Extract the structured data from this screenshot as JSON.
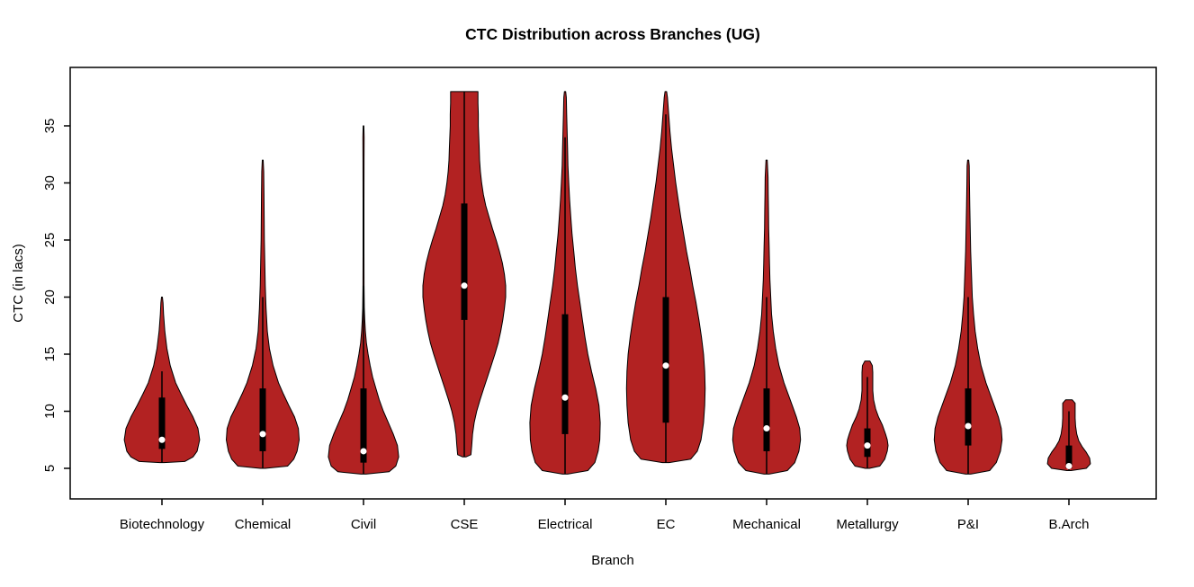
{
  "chart_data": {
    "type": "violin",
    "title": "CTC Distribution across Branches (UG)",
    "xlabel": "Branch",
    "ylabel": "CTC (in lacs)",
    "ylim": [
      2.5,
      39.5
    ],
    "yticks": [
      5,
      10,
      15,
      20,
      25,
      30,
      35
    ],
    "grid": false,
    "legend": "none",
    "violin_fill": "#B22222",
    "outline_color": "#000000",
    "median_dot_color": "#ffffff",
    "categories": [
      "Biotechnology",
      "Chemical",
      "Civil",
      "CSE",
      "Electrical",
      "EC",
      "Mechanical",
      "Metallurgy",
      "P&I",
      "B.Arch"
    ],
    "series": [
      {
        "name": "Biotechnology",
        "min": 5.5,
        "max": 20,
        "median": 7.5,
        "q1": 6.7,
        "q3": 11.2,
        "whisker_low": 5.5,
        "whisker_high": 13.5,
        "profile": [
          [
            5.5,
            0.05
          ],
          [
            5.6,
            0.55
          ],
          [
            6,
            0.75
          ],
          [
            6.5,
            0.85
          ],
          [
            7.5,
            0.91
          ],
          [
            8.5,
            0.87
          ],
          [
            9.5,
            0.75
          ],
          [
            10.5,
            0.6
          ],
          [
            11.5,
            0.46
          ],
          [
            12.5,
            0.33
          ],
          [
            14,
            0.2
          ],
          [
            15.5,
            0.12
          ],
          [
            17,
            0.07
          ],
          [
            18.5,
            0.04
          ],
          [
            19.5,
            0.025
          ],
          [
            20,
            0.01
          ]
        ]
      },
      {
        "name": "Chemical",
        "min": 5,
        "max": 32,
        "median": 8,
        "q1": 6.5,
        "q3": 12,
        "whisker_low": 5,
        "whisker_high": 20,
        "profile": [
          [
            5,
            0.06
          ],
          [
            5.2,
            0.6
          ],
          [
            5.8,
            0.75
          ],
          [
            6.5,
            0.83
          ],
          [
            7.5,
            0.88
          ],
          [
            8.5,
            0.86
          ],
          [
            9.5,
            0.77
          ],
          [
            10.5,
            0.63
          ],
          [
            11.5,
            0.5
          ],
          [
            12.5,
            0.38
          ],
          [
            14,
            0.25
          ],
          [
            15.5,
            0.16
          ],
          [
            17,
            0.11
          ],
          [
            19,
            0.08
          ],
          [
            21,
            0.06
          ],
          [
            23,
            0.05
          ],
          [
            25,
            0.04
          ],
          [
            27,
            0.035
          ],
          [
            29,
            0.03
          ],
          [
            31,
            0.025
          ],
          [
            32,
            0.01
          ]
        ]
      },
      {
        "name": "Civil",
        "min": 4.5,
        "max": 35,
        "median": 6.5,
        "q1": 5.5,
        "q3": 12,
        "whisker_low": 4.5,
        "whisker_high": 21,
        "profile": [
          [
            4.5,
            0.06
          ],
          [
            4.7,
            0.62
          ],
          [
            5.2,
            0.78
          ],
          [
            6,
            0.85
          ],
          [
            7,
            0.82
          ],
          [
            8,
            0.72
          ],
          [
            9,
            0.6
          ],
          [
            10,
            0.48
          ],
          [
            11,
            0.38
          ],
          [
            12,
            0.3
          ],
          [
            13,
            0.22
          ],
          [
            14,
            0.16
          ],
          [
            15,
            0.11
          ],
          [
            16,
            0.07
          ],
          [
            17,
            0.045
          ],
          [
            18,
            0.03
          ],
          [
            19,
            0.02
          ],
          [
            21,
            0.012
          ],
          [
            24,
            0.01
          ],
          [
            28,
            0.01
          ],
          [
            32,
            0.012
          ],
          [
            34,
            0.015
          ],
          [
            35,
            0.008
          ]
        ]
      },
      {
        "name": "CSE",
        "min": 6,
        "max": 38,
        "median": 21,
        "q1": 18,
        "q3": 28.2,
        "whisker_low": 6,
        "whisker_high": 38,
        "profile": [
          [
            6,
            0.04
          ],
          [
            6.2,
            0.16
          ],
          [
            7,
            0.18
          ],
          [
            8,
            0.2
          ],
          [
            9,
            0.24
          ],
          [
            10,
            0.3
          ],
          [
            11,
            0.38
          ],
          [
            12,
            0.47
          ],
          [
            13,
            0.56
          ],
          [
            14,
            0.65
          ],
          [
            15,
            0.74
          ],
          [
            16,
            0.82
          ],
          [
            17,
            0.88
          ],
          [
            18,
            0.93
          ],
          [
            19,
            0.97
          ],
          [
            20,
            1.0
          ],
          [
            21,
            1.0
          ],
          [
            22,
            0.97
          ],
          [
            23,
            0.92
          ],
          [
            24,
            0.85
          ],
          [
            25,
            0.77
          ],
          [
            26,
            0.68
          ],
          [
            27,
            0.6
          ],
          [
            28,
            0.52
          ],
          [
            29,
            0.46
          ],
          [
            30,
            0.42
          ],
          [
            31,
            0.39
          ],
          [
            32,
            0.37
          ],
          [
            33,
            0.36
          ],
          [
            34,
            0.35
          ],
          [
            35,
            0.34
          ],
          [
            36,
            0.34
          ],
          [
            37,
            0.33
          ],
          [
            38,
            0.33
          ]
        ]
      },
      {
        "name": "Electrical",
        "min": 4.5,
        "max": 38,
        "median": 11.2,
        "q1": 8,
        "q3": 18.5,
        "whisker_low": 4.5,
        "whisker_high": 34,
        "profile": [
          [
            4.5,
            0.06
          ],
          [
            4.8,
            0.55
          ],
          [
            5.5,
            0.72
          ],
          [
            6.5,
            0.8
          ],
          [
            7.5,
            0.84
          ],
          [
            9,
            0.85
          ],
          [
            10.5,
            0.82
          ],
          [
            12,
            0.74
          ],
          [
            13.5,
            0.64
          ],
          [
            15,
            0.55
          ],
          [
            16.5,
            0.48
          ],
          [
            18,
            0.42
          ],
          [
            19.5,
            0.36
          ],
          [
            21,
            0.3
          ],
          [
            22.5,
            0.25
          ],
          [
            24,
            0.21
          ],
          [
            25.5,
            0.17
          ],
          [
            27,
            0.14
          ],
          [
            28.5,
            0.11
          ],
          [
            30,
            0.09
          ],
          [
            31.5,
            0.07
          ],
          [
            33,
            0.06
          ],
          [
            34.5,
            0.05
          ],
          [
            36,
            0.04
          ],
          [
            37.5,
            0.03
          ],
          [
            38,
            0.015
          ]
        ]
      },
      {
        "name": "EC",
        "min": 5.5,
        "max": 38,
        "median": 14,
        "q1": 9,
        "q3": 20,
        "whisker_low": 5.5,
        "whisker_high": 36,
        "profile": [
          [
            5.5,
            0.08
          ],
          [
            5.8,
            0.6
          ],
          [
            6.5,
            0.76
          ],
          [
            7.5,
            0.85
          ],
          [
            9,
            0.91
          ],
          [
            10.5,
            0.94
          ],
          [
            12,
            0.95
          ],
          [
            13.5,
            0.94
          ],
          [
            15,
            0.91
          ],
          [
            16.5,
            0.86
          ],
          [
            18,
            0.8
          ],
          [
            19.5,
            0.73
          ],
          [
            21,
            0.65
          ],
          [
            22.5,
            0.58
          ],
          [
            24,
            0.5
          ],
          [
            25.5,
            0.43
          ],
          [
            27,
            0.36
          ],
          [
            28.5,
            0.3
          ],
          [
            30,
            0.24
          ],
          [
            31.5,
            0.19
          ],
          [
            33,
            0.14
          ],
          [
            34.5,
            0.1
          ],
          [
            36,
            0.07
          ],
          [
            37.5,
            0.04
          ],
          [
            38,
            0.02
          ]
        ]
      },
      {
        "name": "Mechanical",
        "min": 4.5,
        "max": 32,
        "median": 8.5,
        "q1": 6.5,
        "q3": 12,
        "whisker_low": 4.5,
        "whisker_high": 20,
        "profile": [
          [
            4.5,
            0.06
          ],
          [
            4.8,
            0.5
          ],
          [
            5.5,
            0.68
          ],
          [
            6.5,
            0.78
          ],
          [
            7.5,
            0.82
          ],
          [
            8.5,
            0.8
          ],
          [
            9.5,
            0.72
          ],
          [
            10.5,
            0.62
          ],
          [
            11.5,
            0.52
          ],
          [
            12.5,
            0.42
          ],
          [
            14,
            0.3
          ],
          [
            15.5,
            0.22
          ],
          [
            17,
            0.16
          ],
          [
            18.5,
            0.12
          ],
          [
            20,
            0.1
          ],
          [
            21.5,
            0.08
          ],
          [
            23,
            0.07
          ],
          [
            24.5,
            0.06
          ],
          [
            26,
            0.05
          ],
          [
            27.5,
            0.045
          ],
          [
            29,
            0.04
          ],
          [
            30.5,
            0.035
          ],
          [
            32,
            0.015
          ]
        ]
      },
      {
        "name": "Metallurgy",
        "min": 5,
        "max": 14.4,
        "median": 7,
        "q1": 6,
        "q3": 8.5,
        "whisker_low": 5,
        "whisker_high": 13,
        "profile": [
          [
            5,
            0.05
          ],
          [
            5.2,
            0.3
          ],
          [
            5.8,
            0.42
          ],
          [
            6.5,
            0.48
          ],
          [
            7,
            0.5
          ],
          [
            7.5,
            0.48
          ],
          [
            8,
            0.44
          ],
          [
            8.8,
            0.36
          ],
          [
            9.5,
            0.27
          ],
          [
            10.2,
            0.2
          ],
          [
            11,
            0.15
          ],
          [
            11.8,
            0.13
          ],
          [
            12.6,
            0.13
          ],
          [
            13.4,
            0.13
          ],
          [
            14,
            0.12
          ],
          [
            14.4,
            0.06
          ]
        ]
      },
      {
        "name": "P&I",
        "min": 4.5,
        "max": 32,
        "median": 8.7,
        "q1": 7,
        "q3": 12,
        "whisker_low": 4.5,
        "whisker_high": 20,
        "profile": [
          [
            4.5,
            0.06
          ],
          [
            4.8,
            0.52
          ],
          [
            5.5,
            0.68
          ],
          [
            6.5,
            0.78
          ],
          [
            7.5,
            0.82
          ],
          [
            8.5,
            0.8
          ],
          [
            9.5,
            0.73
          ],
          [
            10.5,
            0.63
          ],
          [
            11.5,
            0.53
          ],
          [
            12.5,
            0.43
          ],
          [
            14,
            0.31
          ],
          [
            15.5,
            0.23
          ],
          [
            17,
            0.17
          ],
          [
            18.5,
            0.13
          ],
          [
            20,
            0.1
          ],
          [
            22,
            0.08
          ],
          [
            24,
            0.06
          ],
          [
            26,
            0.05
          ],
          [
            28,
            0.04
          ],
          [
            30,
            0.03
          ],
          [
            31.5,
            0.025
          ],
          [
            32,
            0.012
          ]
        ]
      },
      {
        "name": "B.Arch",
        "min": 4.8,
        "max": 11,
        "median": 5.2,
        "q1": 5,
        "q3": 7,
        "whisker_low": 4.8,
        "whisker_high": 10,
        "profile": [
          [
            4.8,
            0.05
          ],
          [
            5,
            0.42
          ],
          [
            5.4,
            0.52
          ],
          [
            5.9,
            0.5
          ],
          [
            6.4,
            0.42
          ],
          [
            6.9,
            0.32
          ],
          [
            7.4,
            0.24
          ],
          [
            8,
            0.19
          ],
          [
            8.7,
            0.16
          ],
          [
            9.4,
            0.15
          ],
          [
            10.1,
            0.15
          ],
          [
            10.7,
            0.15
          ],
          [
            11,
            0.08
          ]
        ]
      }
    ]
  }
}
